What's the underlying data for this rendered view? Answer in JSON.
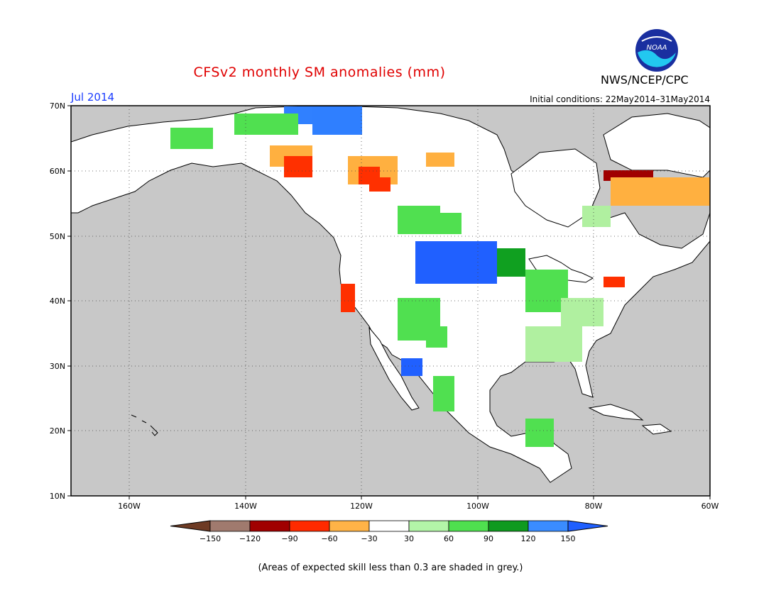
{
  "title": "CFSv2 monthly SM anomalies (mm)",
  "forecast_month": "Jul 2014",
  "initial_conditions": "Initial conditions: 22May2014–31May2014",
  "agency": "NWS/NCEP/CPC",
  "logo_text": "NOAA",
  "footnote": "(Areas of expected skill less than 0.3 are shaded in grey.)",
  "colors": {
    "grey_low_skill": "#c8c8c8",
    "ocean": "#c8c8c8",
    "land_near_normal": "#ffffff",
    "bins": [
      "#6e3b24",
      "#a07060",
      "#a00000",
      "#ff3000",
      "#ffb040",
      "#ffffff",
      "#b0f0a0",
      "#50e050",
      "#10a020",
      "#3080ff",
      "#2060ff"
    ]
  },
  "map": {
    "lat_ticks": [
      "70N",
      "60N",
      "50N",
      "40N",
      "30N",
      "20N",
      "10N"
    ],
    "lon_ticks": [
      "160W",
      "140W",
      "120W",
      "100W",
      "80W",
      "60W"
    ]
  },
  "legend": {
    "labels": [
      "−150",
      "−120",
      "−90",
      "−60",
      "−30",
      "30",
      "60",
      "90",
      "120",
      "150"
    ],
    "colors": [
      "#a07a6e",
      "#a00000",
      "#ff2a00",
      "#ffb347",
      "#ffffff",
      "#b3f5a8",
      "#4fe04f",
      "#0f9a1f",
      "#3a8cff"
    ],
    "low_arrow_color": "#6e3b24",
    "high_arrow_color": "#1f5fff"
  }
}
